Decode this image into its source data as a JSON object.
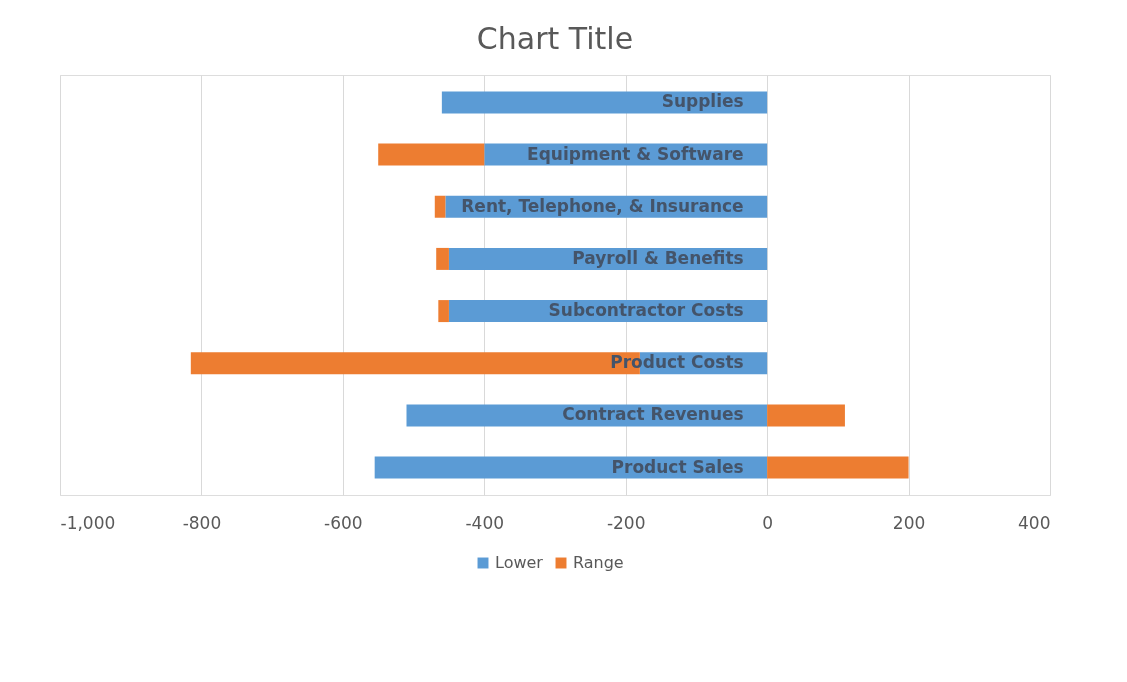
{
  "chart_data": {
    "type": "bar",
    "orientation": "horizontal",
    "stacked": true,
    "title": "Chart Title",
    "categories": [
      "Supplies",
      "Equipment & Software",
      "Rent, Telephone, & Insurance",
      "Payroll & Benefits",
      "Subcontractor Costs",
      "Product Costs",
      "Contract Revenues",
      "Product Sales"
    ],
    "series": [
      {
        "name": "Lower",
        "color": "#5b9bd5",
        "values": [
          -460,
          -400,
          -455,
          -450,
          -450,
          -180,
          -510,
          -555
        ]
      },
      {
        "name": "Range",
        "color": "#ed7d31",
        "values": [
          0,
          -150,
          -15,
          -18,
          -15,
          -635,
          110,
          200
        ]
      }
    ],
    "xlim": [
      -1000,
      400
    ],
    "xticks": [
      {
        "value": -1000,
        "label": "-1,000"
      },
      -800,
      -600,
      -400,
      -200,
      0,
      200,
      400
    ],
    "grid": "x",
    "legend": "bottom"
  }
}
